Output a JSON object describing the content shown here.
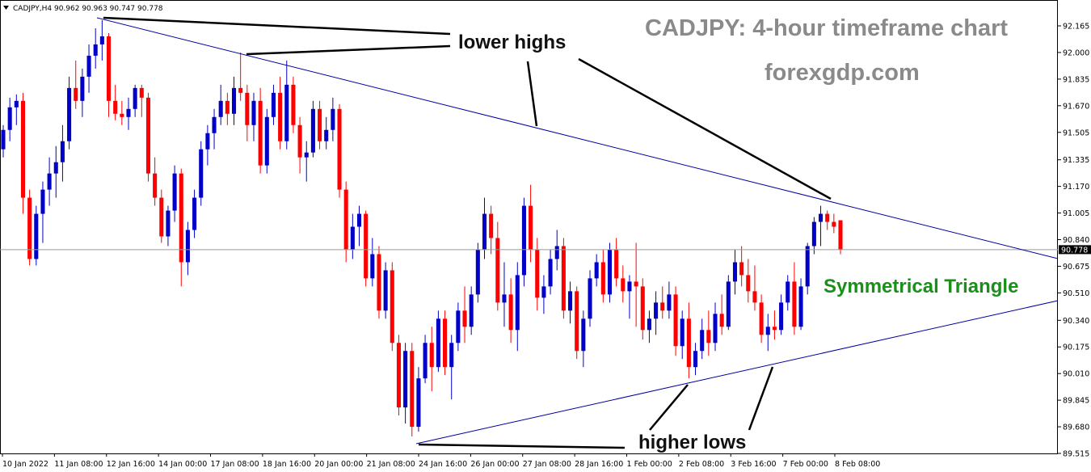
{
  "header": {
    "symbol_info": "CADJPY,H4  90.962 90.963 90.747 90.778",
    "dropdown_icon": "triangle-down-icon"
  },
  "overlay": {
    "title": "CADJPY: 4-hour timeframe chart",
    "website": "forexgdp.com",
    "pattern_label": "Symmetrical Triangle",
    "lower_highs_label": "lower highs",
    "higher_lows_label": "higher lows"
  },
  "chart_data": {
    "type": "candlestick",
    "symbol": "CADJPY",
    "timeframe": "H4",
    "ohlc_header": {
      "open": 90.962,
      "high": 90.963,
      "low": 90.747,
      "close": 90.778
    },
    "current_price": 90.778,
    "ylim": [
      89.515,
      92.25
    ],
    "y_ticks": [
      "92.165",
      "92.000",
      "91.835",
      "91.670",
      "91.505",
      "91.335",
      "91.170",
      "91.005",
      "90.840",
      "90.675",
      "90.510",
      "90.340",
      "90.175",
      "90.010",
      "89.845",
      "89.680",
      "89.515"
    ],
    "x_ticks": [
      "10 Jan 2022",
      "11 Jan 08:00",
      "12 Jan 16:00",
      "14 Jan 00:00",
      "17 Jan 08:00",
      "18 Jan 16:00",
      "20 Jan 00:00",
      "21 Jan 08:00",
      "24 Jan 16:00",
      "26 Jan 00:00",
      "27 Jan 08:00",
      "28 Jan 16:00",
      "1 Feb 00:00",
      "2 Feb 08:00",
      "3 Feb 16:00",
      "7 Feb 00:00",
      "8 Feb 08:00"
    ],
    "bull_color": "#0000c8",
    "bear_color": "#ff0000",
    "trendline_color": "#0000a0",
    "pattern_color": "#1a8f1a",
    "candles": [
      [
        91.4,
        91.55,
        91.35,
        91.52
      ],
      [
        91.52,
        91.72,
        91.45,
        91.66
      ],
      [
        91.66,
        91.74,
        91.55,
        91.7
      ],
      [
        91.7,
        91.75,
        91.0,
        91.1
      ],
      [
        91.1,
        91.15,
        90.68,
        90.72
      ],
      [
        90.72,
        91.05,
        90.68,
        91.0
      ],
      [
        91.0,
        91.2,
        90.82,
        91.15
      ],
      [
        91.15,
        91.35,
        91.05,
        91.25
      ],
      [
        91.25,
        91.42,
        91.1,
        91.32
      ],
      [
        91.32,
        91.55,
        91.2,
        91.45
      ],
      [
        91.45,
        91.85,
        91.4,
        91.78
      ],
      [
        91.78,
        91.95,
        91.65,
        91.7
      ],
      [
        91.7,
        91.9,
        91.6,
        91.85
      ],
      [
        91.85,
        92.05,
        91.75,
        91.98
      ],
      [
        91.98,
        92.15,
        91.9,
        92.05
      ],
      [
        92.05,
        92.2,
        91.95,
        92.1
      ],
      [
        92.1,
        92.12,
        91.6,
        91.7
      ],
      [
        91.7,
        91.8,
        91.58,
        91.62
      ],
      [
        91.62,
        91.7,
        91.55,
        91.6
      ],
      [
        91.6,
        91.72,
        91.52,
        91.65
      ],
      [
        91.65,
        91.8,
        91.6,
        91.78
      ],
      [
        91.78,
        91.8,
        91.6,
        91.72
      ],
      [
        91.72,
        91.75,
        91.2,
        91.25
      ],
      [
        91.25,
        91.35,
        91.05,
        91.1
      ],
      [
        91.1,
        91.15,
        90.82,
        90.86
      ],
      [
        90.86,
        91.05,
        90.8,
        91.02
      ],
      [
        91.02,
        91.3,
        90.95,
        91.25
      ],
      [
        91.25,
        91.28,
        90.55,
        90.7
      ],
      [
        90.7,
        90.95,
        90.62,
        90.9
      ],
      [
        90.9,
        91.15,
        90.85,
        91.1
      ],
      [
        91.1,
        91.45,
        91.05,
        91.4
      ],
      [
        91.4,
        91.55,
        91.3,
        91.5
      ],
      [
        91.5,
        91.65,
        91.4,
        91.6
      ],
      [
        91.6,
        91.8,
        91.55,
        91.7
      ],
      [
        91.7,
        91.75,
        91.55,
        91.62
      ],
      [
        91.62,
        91.85,
        91.55,
        91.78
      ],
      [
        91.78,
        92.0,
        91.7,
        91.75
      ],
      [
        91.75,
        91.8,
        91.45,
        91.55
      ],
      [
        91.55,
        91.75,
        91.45,
        91.7
      ],
      [
        91.7,
        91.78,
        91.25,
        91.3
      ],
      [
        91.3,
        91.65,
        91.25,
        91.6
      ],
      [
        91.6,
        91.8,
        91.55,
        91.75
      ],
      [
        91.75,
        91.85,
        91.4,
        91.45
      ],
      [
        91.45,
        91.95,
        91.4,
        91.8
      ],
      [
        91.8,
        91.85,
        91.5,
        91.55
      ],
      [
        91.55,
        91.6,
        91.25,
        91.35
      ],
      [
        91.35,
        91.45,
        91.2,
        91.38
      ],
      [
        91.38,
        91.7,
        91.35,
        91.65
      ],
      [
        91.65,
        91.7,
        91.4,
        91.45
      ],
      [
        91.45,
        91.6,
        91.4,
        91.52
      ],
      [
        91.52,
        91.72,
        91.45,
        91.65
      ],
      [
        91.65,
        91.68,
        91.1,
        91.15
      ],
      [
        91.15,
        91.2,
        90.7,
        90.78
      ],
      [
        90.78,
        91.0,
        90.72,
        90.92
      ],
      [
        90.92,
        91.05,
        90.8,
        91.0
      ],
      [
        91.0,
        91.02,
        90.55,
        90.6
      ],
      [
        90.6,
        90.85,
        90.55,
        90.75
      ],
      [
        90.75,
        90.8,
        90.35,
        90.4
      ],
      [
        90.4,
        90.7,
        90.35,
        90.65
      ],
      [
        90.65,
        90.7,
        90.15,
        90.2
      ],
      [
        90.2,
        90.25,
        89.75,
        89.8
      ],
      [
        89.8,
        90.2,
        89.7,
        90.15
      ],
      [
        90.15,
        90.2,
        89.62,
        89.68
      ],
      [
        89.68,
        90.05,
        89.65,
        89.98
      ],
      [
        89.98,
        90.25,
        89.95,
        90.2
      ],
      [
        90.2,
        90.3,
        89.9,
        90.05
      ],
      [
        90.05,
        90.4,
        90.02,
        90.35
      ],
      [
        90.35,
        90.4,
        90.0,
        90.05
      ],
      [
        90.05,
        90.25,
        89.85,
        90.2
      ],
      [
        90.2,
        90.45,
        90.15,
        90.4
      ],
      [
        90.4,
        90.55,
        90.2,
        90.3
      ],
      [
        90.3,
        90.55,
        90.25,
        90.5
      ],
      [
        90.5,
        90.82,
        90.45,
        90.78
      ],
      [
        90.78,
        91.1,
        90.72,
        91.0
      ],
      [
        91.0,
        91.05,
        90.75,
        90.85
      ],
      [
        90.85,
        90.95,
        90.4,
        90.45
      ],
      [
        90.45,
        90.7,
        90.3,
        90.5
      ],
      [
        90.5,
        90.6,
        90.2,
        90.28
      ],
      [
        90.28,
        90.7,
        90.15,
        90.62
      ],
      [
        90.62,
        91.1,
        90.55,
        91.05
      ],
      [
        91.05,
        91.18,
        90.7,
        90.78
      ],
      [
        90.78,
        90.85,
        90.4,
        90.48
      ],
      [
        90.48,
        90.62,
        90.38,
        90.55
      ],
      [
        90.55,
        90.78,
        90.5,
        90.72
      ],
      [
        90.72,
        90.9,
        90.65,
        90.8
      ],
      [
        90.8,
        90.85,
        90.35,
        90.4
      ],
      [
        90.4,
        90.58,
        90.32,
        90.52
      ],
      [
        90.52,
        90.55,
        90.1,
        90.15
      ],
      [
        90.15,
        90.4,
        90.05,
        90.35
      ],
      [
        90.35,
        90.65,
        90.3,
        90.6
      ],
      [
        90.6,
        90.75,
        90.55,
        90.7
      ],
      [
        90.7,
        90.78,
        90.45,
        90.5
      ],
      [
        90.5,
        90.82,
        90.45,
        90.78
      ],
      [
        90.78,
        90.85,
        90.55,
        90.6
      ],
      [
        90.6,
        90.68,
        90.45,
        90.52
      ],
      [
        90.52,
        90.62,
        90.35,
        90.58
      ],
      [
        90.58,
        90.82,
        90.3,
        90.55
      ],
      [
        90.55,
        90.6,
        90.22,
        90.28
      ],
      [
        90.28,
        90.4,
        90.2,
        90.35
      ],
      [
        90.35,
        90.52,
        90.25,
        90.45
      ],
      [
        90.45,
        90.55,
        90.35,
        90.4
      ],
      [
        90.4,
        90.58,
        90.35,
        90.5
      ],
      [
        90.5,
        90.55,
        90.12,
        90.18
      ],
      [
        90.18,
        90.4,
        90.1,
        90.35
      ],
      [
        90.35,
        90.45,
        89.98,
        90.05
      ],
      [
        90.05,
        90.2,
        90.0,
        90.15
      ],
      [
        90.15,
        90.35,
        90.1,
        90.28
      ],
      [
        90.28,
        90.4,
        90.12,
        90.2
      ],
      [
        90.2,
        90.45,
        90.15,
        90.38
      ],
      [
        90.38,
        90.5,
        90.25,
        90.3
      ],
      [
        90.3,
        90.62,
        90.28,
        90.58
      ],
      [
        90.58,
        90.78,
        90.5,
        90.7
      ],
      [
        90.7,
        90.8,
        90.55,
        90.62
      ],
      [
        90.62,
        90.72,
        90.45,
        90.52
      ],
      [
        90.52,
        90.68,
        90.4,
        90.45
      ],
      [
        90.45,
        90.5,
        90.2,
        90.25
      ],
      [
        90.25,
        90.38,
        90.15,
        90.3
      ],
      [
        90.3,
        90.4,
        90.22,
        90.28
      ],
      [
        90.28,
        90.5,
        90.25,
        90.45
      ],
      [
        90.45,
        90.62,
        90.4,
        90.58
      ],
      [
        90.58,
        90.7,
        90.25,
        90.3
      ],
      [
        90.3,
        90.6,
        90.28,
        90.55
      ],
      [
        90.55,
        90.82,
        90.5,
        90.8
      ],
      [
        90.8,
        90.98,
        90.75,
        90.95
      ],
      [
        90.95,
        91.05,
        90.8,
        91.0
      ],
      [
        91.0,
        91.02,
        90.9,
        90.95
      ],
      [
        90.95,
        91.0,
        90.88,
        90.92
      ],
      [
        90.96,
        90.96,
        90.75,
        90.78
      ]
    ]
  }
}
